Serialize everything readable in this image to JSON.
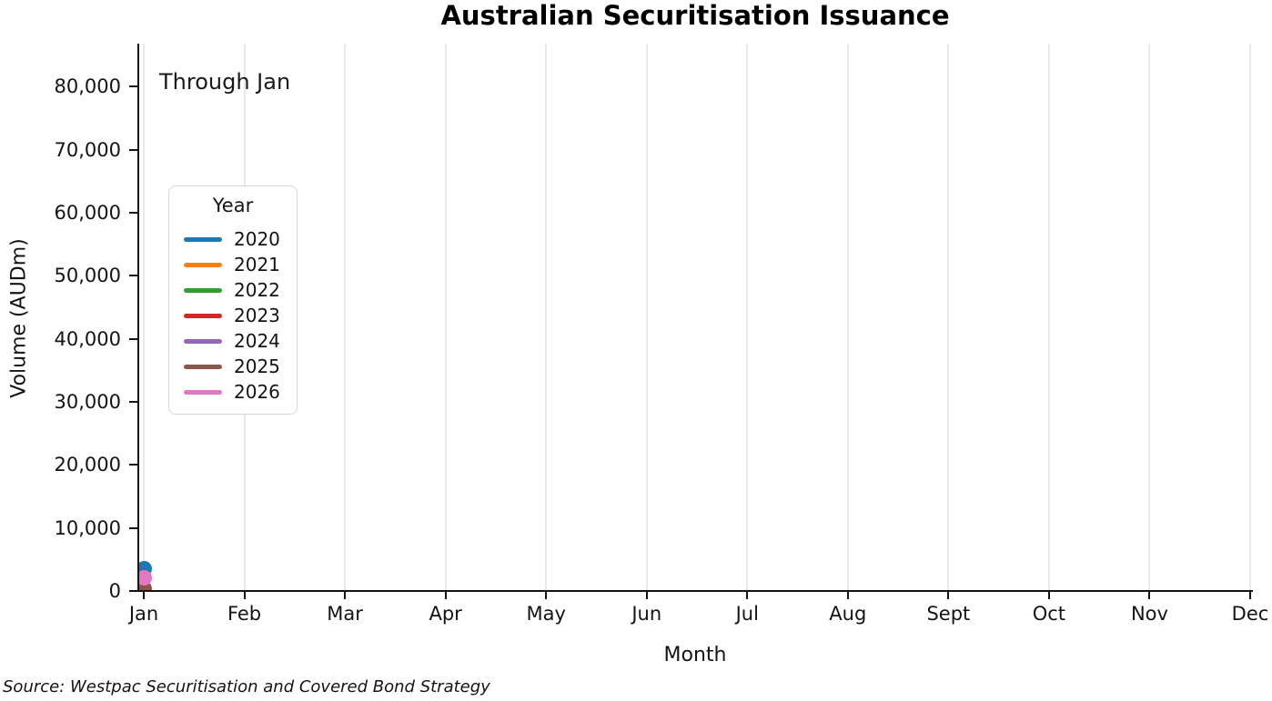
{
  "chart_data": {
    "type": "scatter",
    "title": "Australian Securitisation Issuance",
    "annotation": "Through Jan",
    "xlabel": "Month",
    "ylabel": "Volume (AUDm)",
    "x_categories": [
      "Jan",
      "Feb",
      "Mar",
      "Apr",
      "May",
      "Jun",
      "Jul",
      "Aug",
      "Sept",
      "Oct",
      "Nov",
      "Dec"
    ],
    "ylim": [
      0,
      86800
    ],
    "yticks": [
      {
        "value": 0,
        "label": "0"
      },
      {
        "value": 10000,
        "label": "10,000"
      },
      {
        "value": 20000,
        "label": "20,000"
      },
      {
        "value": 30000,
        "label": "30,000"
      },
      {
        "value": 40000,
        "label": "40,000"
      },
      {
        "value": 50000,
        "label": "50,000"
      },
      {
        "value": 60000,
        "label": "60,000"
      },
      {
        "value": 70000,
        "label": "70,000"
      },
      {
        "value": 80000,
        "label": "80,000"
      }
    ],
    "grid": {
      "vertical": true,
      "horizontal": false,
      "color": "#e9e9ec"
    },
    "legend": {
      "title": "Year",
      "position": "upper left",
      "entries": [
        "2020",
        "2021",
        "2022",
        "2023",
        "2024",
        "2025",
        "2026"
      ]
    },
    "series": [
      {
        "name": "2020",
        "color": "#1f77b4",
        "points": [
          {
            "x": "Jan",
            "y": 3600
          }
        ]
      },
      {
        "name": "2021",
        "color": "#ff7f0e",
        "points": []
      },
      {
        "name": "2022",
        "color": "#2ca02c",
        "points": []
      },
      {
        "name": "2023",
        "color": "#d62728",
        "points": []
      },
      {
        "name": "2024",
        "color": "#9467bd",
        "points": []
      },
      {
        "name": "2025",
        "color": "#8c564b",
        "points": [
          {
            "x": "Jan",
            "y": 300
          }
        ]
      },
      {
        "name": "2026",
        "color": "#e377c2",
        "points": [
          {
            "x": "Jan",
            "y": 2100
          }
        ]
      }
    ],
    "source": "Source: Westpac Securitisation and Covered Bond Strategy"
  }
}
